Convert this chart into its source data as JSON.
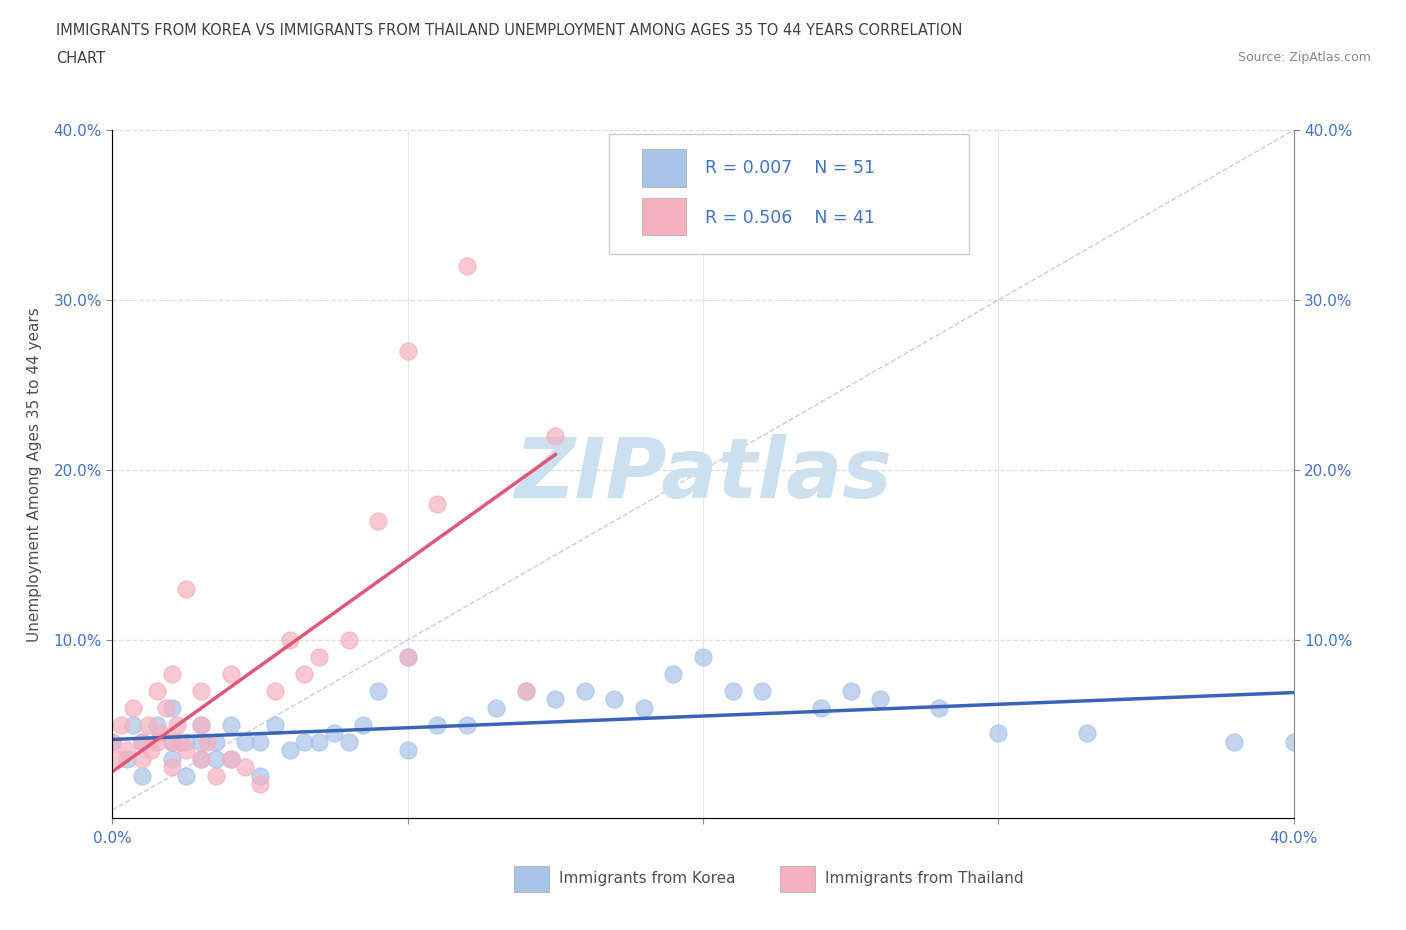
{
  "title_line1": "IMMIGRANTS FROM KOREA VS IMMIGRANTS FROM THAILAND UNEMPLOYMENT AMONG AGES 35 TO 44 YEARS CORRELATION",
  "title_line2": "CHART",
  "source": "Source: ZipAtlas.com",
  "xlabel_korea": "Immigrants from Korea",
  "xlabel_thailand": "Immigrants from Thailand",
  "ylabel": "Unemployment Among Ages 35 to 44 years",
  "xlim": [
    0.0,
    0.4
  ],
  "ylim": [
    -0.005,
    0.4
  ],
  "xticks": [
    0.0,
    0.1,
    0.2,
    0.3,
    0.4
  ],
  "xtick_labels": [
    "0.0%",
    "",
    "",
    "",
    "40.0%"
  ],
  "yticks_left": [
    0.1,
    0.2,
    0.3,
    0.4
  ],
  "ytick_left_labels": [
    "10.0%",
    "20.0%",
    "30.0%",
    "40.0%"
  ],
  "yticks_right": [
    0.1,
    0.2,
    0.3,
    0.4
  ],
  "ytick_right_labels": [
    "10.0%",
    "20.0%",
    "30.0%",
    "40.0%"
  ],
  "korea_R": "0.007",
  "korea_N": "51",
  "thailand_R": "0.506",
  "thailand_N": "41",
  "korea_color": "#aac4e8",
  "thailand_color": "#f5b0c0",
  "korea_trend_color": "#3a64b8",
  "thailand_trend_color": "#e05878",
  "diag_color": "#c8cdd8",
  "korea_scatter_x": [
    0.0,
    0.005,
    0.007,
    0.01,
    0.01,
    0.015,
    0.02,
    0.02,
    0.02,
    0.025,
    0.025,
    0.03,
    0.03,
    0.03,
    0.035,
    0.035,
    0.04,
    0.04,
    0.045,
    0.05,
    0.05,
    0.055,
    0.06,
    0.065,
    0.07,
    0.075,
    0.08,
    0.085,
    0.09,
    0.1,
    0.1,
    0.11,
    0.12,
    0.13,
    0.14,
    0.15,
    0.16,
    0.17,
    0.18,
    0.19,
    0.2,
    0.21,
    0.22,
    0.24,
    0.25,
    0.26,
    0.28,
    0.3,
    0.33,
    0.38,
    0.4
  ],
  "korea_scatter_y": [
    0.04,
    0.03,
    0.05,
    0.02,
    0.04,
    0.05,
    0.03,
    0.04,
    0.06,
    0.02,
    0.04,
    0.03,
    0.04,
    0.05,
    0.03,
    0.04,
    0.03,
    0.05,
    0.04,
    0.02,
    0.04,
    0.05,
    0.035,
    0.04,
    0.04,
    0.045,
    0.04,
    0.05,
    0.07,
    0.035,
    0.09,
    0.05,
    0.05,
    0.06,
    0.07,
    0.065,
    0.07,
    0.065,
    0.06,
    0.08,
    0.09,
    0.07,
    0.07,
    0.06,
    0.07,
    0.065,
    0.06,
    0.045,
    0.045,
    0.04,
    0.04
  ],
  "thailand_scatter_x": [
    0.0,
    0.002,
    0.003,
    0.005,
    0.007,
    0.01,
    0.01,
    0.012,
    0.013,
    0.015,
    0.015,
    0.016,
    0.018,
    0.02,
    0.02,
    0.02,
    0.022,
    0.023,
    0.025,
    0.025,
    0.03,
    0.03,
    0.03,
    0.032,
    0.035,
    0.04,
    0.04,
    0.045,
    0.05,
    0.055,
    0.06,
    0.065,
    0.07,
    0.08,
    0.09,
    0.1,
    0.1,
    0.11,
    0.12,
    0.14,
    0.15
  ],
  "thailand_scatter_y": [
    0.04,
    0.03,
    0.05,
    0.035,
    0.06,
    0.03,
    0.04,
    0.05,
    0.035,
    0.04,
    0.07,
    0.045,
    0.06,
    0.025,
    0.04,
    0.08,
    0.05,
    0.04,
    0.035,
    0.13,
    0.03,
    0.05,
    0.07,
    0.04,
    0.02,
    0.03,
    0.08,
    0.025,
    0.015,
    0.07,
    0.1,
    0.08,
    0.09,
    0.1,
    0.17,
    0.09,
    0.27,
    0.18,
    0.32,
    0.07,
    0.22
  ],
  "background_color": "#ffffff",
  "grid_color": "#d8dde8",
  "title_color": "#404040",
  "axis_label_color": "#505050",
  "tick_color": "#4472c4",
  "legend_r_color": "#4472c4",
  "watermark_text": "ZIPatlas",
  "watermark_color": "#cce0f0",
  "watermark_fontsize": 60
}
